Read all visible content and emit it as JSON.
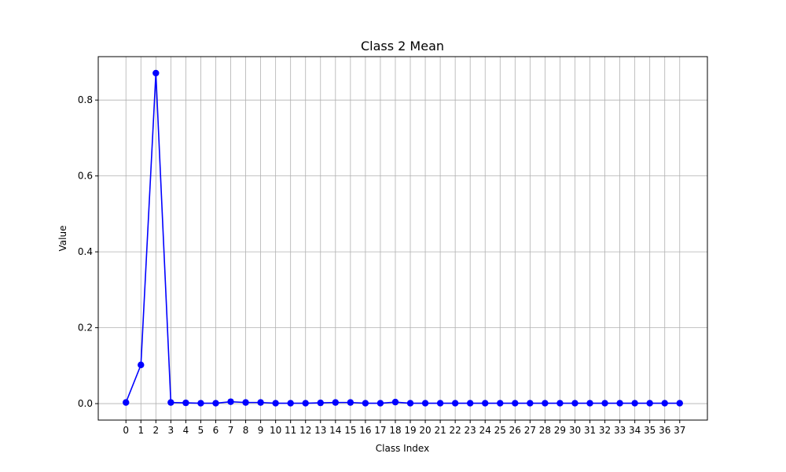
{
  "chart_data": {
    "type": "line",
    "title": "Class 2 Mean",
    "xlabel": "Class Index",
    "ylabel": "Value",
    "x": [
      0,
      1,
      2,
      3,
      4,
      5,
      6,
      7,
      8,
      9,
      10,
      11,
      12,
      13,
      14,
      15,
      16,
      17,
      18,
      19,
      20,
      21,
      22,
      23,
      24,
      25,
      26,
      27,
      28,
      29,
      30,
      31,
      32,
      33,
      34,
      35,
      36,
      37
    ],
    "series": [
      {
        "values": [
          0.003,
          0.102,
          0.871,
          0.003,
          0.002,
          0.001,
          0.001,
          0.005,
          0.003,
          0.003,
          0.001,
          0.001,
          0.001,
          0.002,
          0.003,
          0.003,
          0.001,
          0.001,
          0.004,
          0.001,
          0.001,
          0.001,
          0.001,
          0.001,
          0.001,
          0.001,
          0.001,
          0.001,
          0.001,
          0.001,
          0.001,
          0.001,
          0.001,
          0.001,
          0.001,
          0.001,
          0.001,
          0.001
        ],
        "color": "#0000ff",
        "marker": "circle"
      }
    ],
    "xlim": [
      -1.85,
      38.85
    ],
    "ylim": [
      -0.0434,
      0.9144
    ],
    "yticks": [
      0.0,
      0.2,
      0.4,
      0.6,
      0.8
    ],
    "ytick_labels": [
      "0.0",
      "0.2",
      "0.4",
      "0.6",
      "0.8"
    ],
    "grid": true,
    "legend": "none"
  }
}
